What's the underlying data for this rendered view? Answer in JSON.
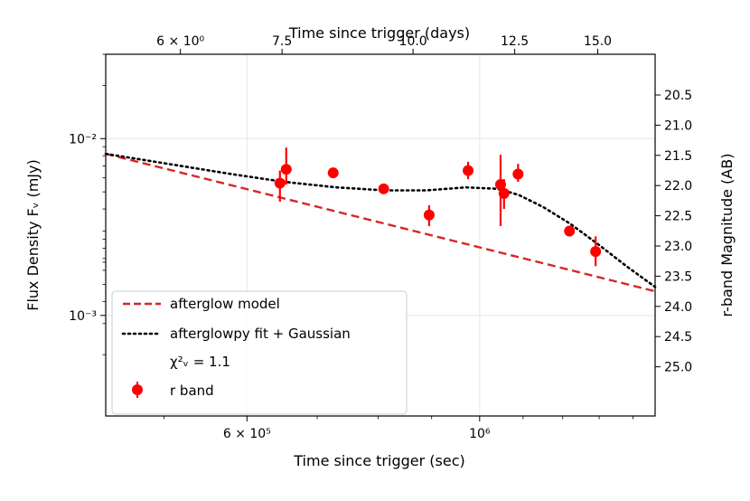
{
  "chart_data": {
    "type": "scatter",
    "xlabel": "Time since trigger (sec)",
    "top_xlabel": "Time since trigger (days)",
    "ylabel": "Flux Density Fᵥ (mJy)",
    "right_ylabel": "r-band Magnitude (AB)",
    "x_scale": "log",
    "y_scale": "log",
    "xlim": [
      440000,
      1470000
    ],
    "ylim": [
      0.00027,
      0.03
    ],
    "grid": true,
    "legend_position": "lower-left",
    "x_ticks": [
      {
        "value": 600000,
        "label": "6 × 10⁵"
      },
      {
        "value": 1000000,
        "label": "10⁶"
      }
    ],
    "y_ticks": [
      {
        "value": 0.01,
        "label": "10⁻²"
      },
      {
        "value": 0.001,
        "label": "10⁻³"
      }
    ],
    "top_x_ticks": [
      {
        "value": 518400,
        "label": "6 × 10⁰"
      },
      {
        "value": 648000,
        "label": "7.5"
      },
      {
        "value": 864000,
        "label": "10.0"
      },
      {
        "value": 1080000,
        "label": "12.5"
      },
      {
        "value": 1296000,
        "label": "15.0"
      }
    ],
    "right_y_ticks": [
      "20.5",
      "21.0",
      "21.5",
      "22.0",
      "22.5",
      "23.0",
      "23.5",
      "24.0",
      "24.5",
      "25.0"
    ],
    "series": [
      {
        "name": "afterglow model",
        "style": "dashed",
        "color": "#d62728",
        "x": [
          440000,
          1470000
        ],
        "y": [
          0.0082,
          0.00137
        ]
      },
      {
        "name": "afterglowpy fit + Gaussian",
        "style": "dotted",
        "color": "#000000",
        "x": [
          440000,
          580000,
          650000,
          730000,
          810000,
          890000,
          970000,
          1040000,
          1090000,
          1150000,
          1220000,
          1300000,
          1380000,
          1470000
        ],
        "y": [
          0.0082,
          0.0063,
          0.0057,
          0.0053,
          0.0051,
          0.0051,
          0.0053,
          0.0052,
          0.0048,
          0.0041,
          0.0033,
          0.0025,
          0.0019,
          0.00145
        ]
      },
      {
        "name": "r band",
        "style": "markers",
        "color": "#ff0000",
        "x": [
          645000,
          654000,
          725000,
          810000,
          895000,
          975000,
          1047000,
          1055000,
          1088000,
          1218000,
          1290000
        ],
        "y": [
          0.0056,
          0.0067,
          0.0064,
          0.0052,
          0.0037,
          0.0066,
          0.0055,
          0.0049,
          0.0063,
          0.003,
          0.0023
        ],
        "yerr_low": [
          0.0012,
          0.0012,
          0.0004,
          0.0002,
          0.0005,
          0.0007,
          0.0023,
          0.0009,
          0.0006,
          0.0001,
          0.0004
        ],
        "yerr_high": [
          0.001,
          0.0022,
          0.0004,
          0.0003,
          0.0005,
          0.0008,
          0.0026,
          0.001,
          0.0009,
          0.0001,
          0.0005
        ]
      }
    ],
    "annotation": "χ²ᵥ = 1.1"
  }
}
